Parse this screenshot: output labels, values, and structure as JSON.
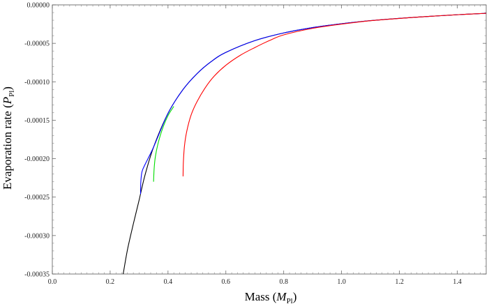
{
  "chart_data": {
    "type": "line",
    "title": "",
    "xlabel_main": "Mass (",
    "xlabel_sym": "M",
    "xlabel_sub": "Pl",
    "xlabel_end": ")",
    "ylabel_main": "Evaporation  rate (",
    "ylabel_sym": "P",
    "ylabel_sub": "Pl",
    "ylabel_end": ")",
    "xlim": [
      0.0,
      1.5
    ],
    "ylim": [
      -0.00035,
      0.0
    ],
    "x_ticks": [
      "0.0",
      "0.2",
      "0.4",
      "0.6",
      "0.8",
      "1.0",
      "1.2",
      "1.4"
    ],
    "y_ticks": [
      "0.00000",
      "-0.00005",
      "-0.00010",
      "-0.00015",
      "-0.00020",
      "-0.00025",
      "-0.00030",
      "-0.00035"
    ],
    "grid": false,
    "series": [
      {
        "color": "#000000",
        "points": [
          [
            0.245,
            -0.00035
          ],
          [
            0.26,
            -0.000318
          ],
          [
            0.28,
            -0.000285
          ],
          [
            0.3,
            -0.000254
          ],
          [
            0.32,
            -0.000222
          ],
          [
            0.35,
            -0.000185
          ],
          [
            0.4,
            -0.000141
          ],
          [
            0.45,
            -0.000111
          ],
          [
            0.5,
            -8.95e-05
          ],
          [
            0.55,
            -7.35e-05
          ],
          [
            0.6,
            -6.18e-05
          ],
          [
            0.7,
            -4.65e-05
          ],
          [
            0.8,
            -3.65e-05
          ],
          [
            0.9,
            -2.95e-05
          ],
          [
            1.0,
            -2.45e-05
          ],
          [
            1.1,
            -2.05e-05
          ],
          [
            1.2,
            -1.75e-05
          ],
          [
            1.3,
            -1.5e-05
          ],
          [
            1.4,
            -1.28e-05
          ],
          [
            1.5,
            -1.1e-05
          ]
        ]
      },
      {
        "color": "#0000ff",
        "points": [
          [
            0.305,
            -0.000246
          ],
          [
            0.306,
            -0.00023
          ],
          [
            0.31,
            -0.000217
          ],
          [
            0.32,
            -0.000208
          ],
          [
            0.35,
            -0.000185
          ],
          [
            0.4,
            -0.000141
          ],
          [
            0.45,
            -0.000111
          ],
          [
            0.5,
            -8.95e-05
          ],
          [
            0.55,
            -7.35e-05
          ],
          [
            0.6,
            -6.18e-05
          ],
          [
            0.7,
            -4.65e-05
          ],
          [
            0.8,
            -3.65e-05
          ],
          [
            0.9,
            -2.95e-05
          ],
          [
            1.0,
            -2.45e-05
          ],
          [
            1.1,
            -2.05e-05
          ],
          [
            1.2,
            -1.75e-05
          ],
          [
            1.3,
            -1.5e-05
          ],
          [
            1.4,
            -1.28e-05
          ],
          [
            1.5,
            -1.1e-05
          ]
        ]
      },
      {
        "color": "#00dd00",
        "points": [
          [
            0.35,
            -0.00023
          ],
          [
            0.352,
            -0.000213
          ],
          [
            0.356,
            -0.000198
          ],
          [
            0.365,
            -0.000181
          ],
          [
            0.38,
            -0.000162
          ],
          [
            0.4,
            -0.000144
          ],
          [
            0.42,
            -0.000132
          ]
        ]
      },
      {
        "color": "#ff0000",
        "points": [
          [
            0.452,
            -0.000223
          ],
          [
            0.453,
            -0.000205
          ],
          [
            0.457,
            -0.000183
          ],
          [
            0.465,
            -0.000164
          ],
          [
            0.48,
            -0.000143
          ],
          [
            0.5,
            -0.000126
          ],
          [
            0.53,
            -0.000107
          ],
          [
            0.56,
            -9.25e-05
          ],
          [
            0.6,
            -7.85e-05
          ],
          [
            0.65,
            -6.55e-05
          ],
          [
            0.7,
            -5.55e-05
          ],
          [
            0.75,
            -4.65e-05
          ],
          [
            0.8,
            -3.9e-05
          ],
          [
            0.9,
            -3.05e-05
          ],
          [
            1.0,
            -2.5e-05
          ],
          [
            1.1,
            -2.06e-05
          ],
          [
            1.2,
            -1.76e-05
          ],
          [
            1.3,
            -1.5e-05
          ],
          [
            1.4,
            -1.28e-05
          ],
          [
            1.5,
            -1.1e-05
          ]
        ]
      }
    ]
  }
}
